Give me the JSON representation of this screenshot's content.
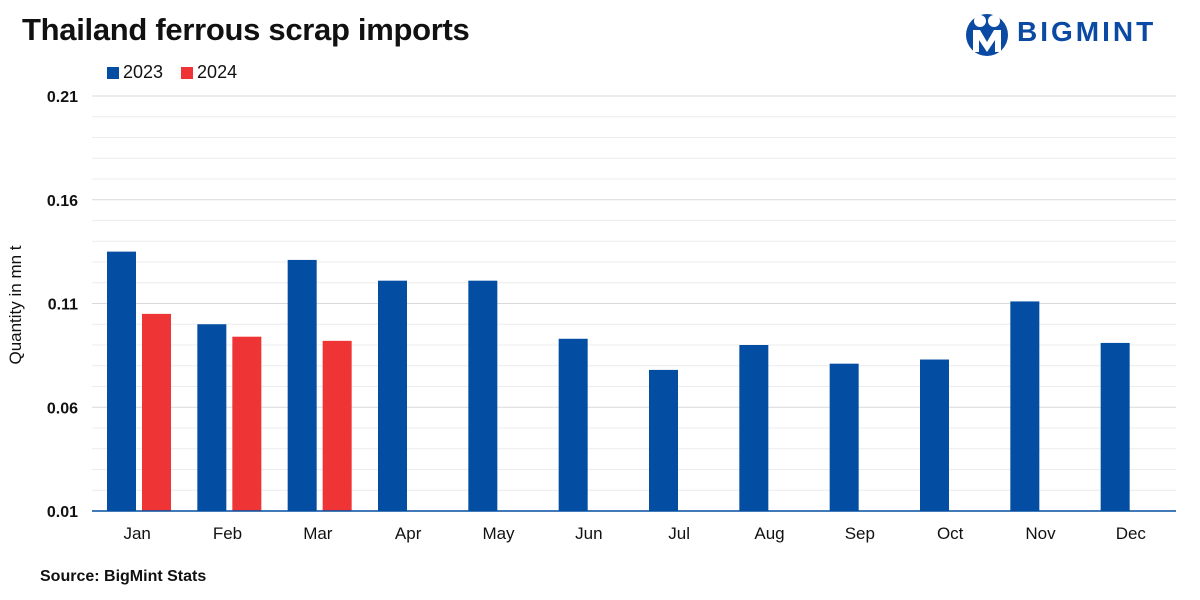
{
  "title": "Thailand ferrous scrap imports",
  "brand": {
    "name": "BIGMINT",
    "color": "#0b4aa2"
  },
  "source": "Source: BigMint Stats",
  "chart_data": {
    "type": "bar",
    "title": "Thailand ferrous scrap imports",
    "xlabel": "",
    "ylabel": "Quantity in mn t",
    "ylim": [
      0.01,
      0.21
    ],
    "yticks": [
      "0.21",
      "0.16",
      "0.11",
      "0.06",
      "0.01"
    ],
    "categories": [
      "Jan",
      "Feb",
      "Mar",
      "Apr",
      "May",
      "Jun",
      "Jul",
      "Aug",
      "Sep",
      "Oct",
      "Nov",
      "Dec"
    ],
    "series": [
      {
        "name": "2023",
        "color": "#034ea2",
        "values": [
          0.135,
          0.1,
          0.131,
          0.121,
          0.121,
          0.093,
          0.078,
          0.09,
          0.081,
          0.083,
          0.111,
          0.091
        ]
      },
      {
        "name": "2024",
        "color": "#ee3434",
        "values": [
          0.105,
          0.094,
          0.092,
          null,
          null,
          null,
          null,
          null,
          null,
          null,
          null,
          null
        ]
      }
    ],
    "legend": "top-left",
    "grid": true
  }
}
